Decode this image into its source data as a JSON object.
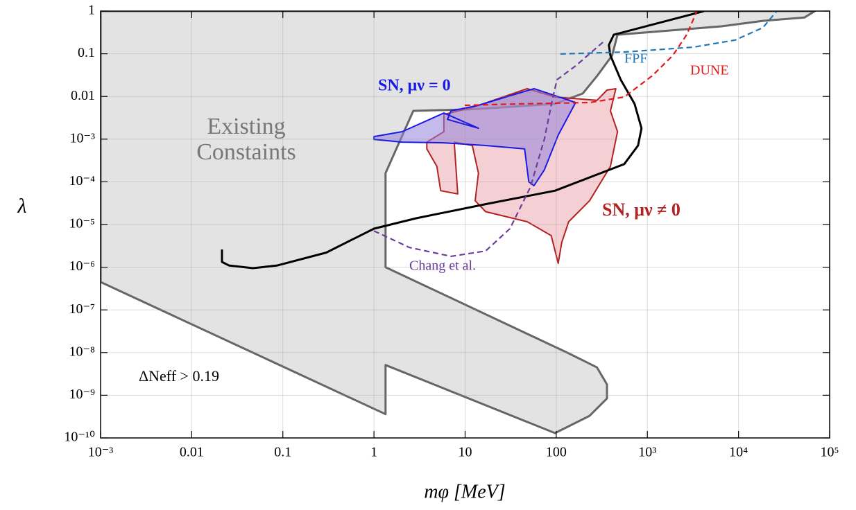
{
  "chart_data": {
    "type": "line",
    "log_x": true,
    "log_y": true,
    "grid": true,
    "xlabel": "mφ [MeV]",
    "ylabel": "λ",
    "xlim": [
      0.001,
      100000
    ],
    "xticks": [
      {
        "value": 0.001,
        "label": "10⁻³"
      },
      0.01,
      0.1,
      1,
      10,
      100,
      {
        "value": 1000,
        "label": "10³"
      },
      {
        "value": 10000,
        "label": "10⁴"
      },
      {
        "value": 100000,
        "label": "10⁵"
      }
    ],
    "ylim": [
      1e-10,
      1
    ],
    "yticks": [
      1,
      0.1,
      0.01,
      {
        "value": 0.001,
        "label": "10⁻³"
      },
      {
        "value": 0.0001,
        "label": "10⁻⁴"
      },
      {
        "value": 1e-05,
        "label": "10⁻⁵"
      },
      {
        "value": 1e-06,
        "label": "10⁻⁶"
      },
      {
        "value": 1e-07,
        "label": "10⁻⁷"
      },
      {
        "value": 1e-08,
        "label": "10⁻⁸"
      },
      {
        "value": 1e-09,
        "label": "10⁻⁹"
      },
      {
        "value": 1e-10,
        "label": "10⁻¹⁰"
      }
    ],
    "series": [
      {
        "color": "#666666",
        "fill": "#e3e3e3",
        "dash": false,
        "x": [
          0.001,
          69000,
          53000,
          18500,
          6500,
          470,
          410,
          280,
          195,
          97,
          12,
          2.7,
          1.34,
          1.34,
          137,
          280,
          360,
          360,
          232,
          97,
          1.34,
          1.34,
          0.001
        ],
        "y": [
          1,
          1,
          0.71,
          0.59,
          0.44,
          0.28,
          0.091,
          0.03,
          0.0117,
          0.0067,
          0.005,
          0.0046,
          0.00016,
          1e-06,
          9.6e-09,
          4.5e-09,
          1.8e-09,
          8.4e-10,
          3.3e-10,
          1.3e-10,
          5.1e-09,
          3.6e-10,
          4.5e-07
        ]
      },
      {
        "color": "#b22222",
        "fill": "rgba(230,150,160,0.45)",
        "dash": false,
        "x": [
          3.8,
          5.85,
          5.85,
          12,
          48,
          97,
          280,
          360,
          451,
          393,
          470,
          393,
          232,
          137,
          115,
          105,
          88,
          48,
          16.8,
          12.9,
          14,
          12,
          7.6,
          8.3,
          5.4,
          4.9,
          3.8
        ],
        "y": [
          0.00085,
          0.0015,
          0.0038,
          0.0055,
          0.0152,
          0.0097,
          0.0081,
          0.0141,
          0.0152,
          0.0046,
          0.0015,
          0.00023,
          3.6e-05,
          1.16e-05,
          3.8e-06,
          1.23e-06,
          5.5e-06,
          1.16e-05,
          2e-05,
          3.6e-05,
          0.00016,
          0.00071,
          0.00085,
          5.2e-05,
          6.2e-05,
          0.00023,
          0.00059
        ]
      },
      {
        "color": "#1a1ae6",
        "fill": "rgba(150,130,220,0.55)",
        "dash": false,
        "x": [
          1.0,
          2.04,
          5.85,
          14,
          6.4,
          7.0,
          14,
          28,
          57,
          97,
          163,
          105,
          74,
          57,
          50,
          45,
          16.8,
          5.85,
          2.04,
          1.0
        ],
        "y": [
          0.00115,
          0.0015,
          0.0041,
          0.0018,
          0.0029,
          0.0046,
          0.0062,
          0.0097,
          0.0152,
          0.0105,
          0.0072,
          0.00124,
          0.00019,
          8.1e-05,
          0.0001,
          0.00059,
          0.00071,
          0.00082,
          0.00085,
          0.00099
        ]
      },
      {
        "color": "#000000",
        "dash": false,
        "x": [
          0.0215,
          0.0215,
          0.0256,
          0.047,
          0.087,
          0.3,
          1.0,
          2.9,
          16.8,
          97,
          557,
          790,
          863,
          724,
          510,
          393,
          378,
          428,
          4180
        ],
        "y": [
          2.6e-06,
          1.33e-06,
          1.1e-06,
          9.5e-07,
          1.1e-06,
          2.2e-06,
          8e-06,
          1.4e-05,
          3e-05,
          6.2e-05,
          0.00026,
          0.00071,
          0.0018,
          0.0067,
          0.0247,
          0.091,
          0.16,
          0.28,
          1
        ]
      },
      {
        "color": "#6a3d9a",
        "dash": true,
        "x": [
          1.0,
          2.44,
          7.0,
          16.8,
          31,
          52,
          74,
          92,
          102,
          163,
          329
        ],
        "y": [
          7.1e-06,
          2.9e-06,
          1.8e-06,
          2.4e-06,
          8e-06,
          7.5e-05,
          0.001,
          0.0097,
          0.0247,
          0.052,
          0.19
        ]
      },
      {
        "color": "#e31a1c",
        "dash": true,
        "x": [
          9.9,
          40,
          232,
          557,
          1120,
          1900,
          2700,
          3500
        ],
        "y": [
          0.0062,
          0.0067,
          0.0072,
          0.0097,
          0.03,
          0.091,
          0.28,
          1
        ]
      },
      {
        "color": "#1f78b4",
        "dash": true,
        "x": [
          111,
          557,
          3210,
          9200,
          18500,
          26300
        ],
        "y": [
          0.099,
          0.11,
          0.143,
          0.21,
          0.41,
          1
        ]
      }
    ],
    "annotations": [
      {
        "text": "Existing",
        "color": "#777777"
      },
      {
        "text": "Constaints",
        "color": "#777777"
      },
      {
        "text": "SN, μν = 0",
        "color": "#1a1ae6"
      },
      {
        "text": "SN, μν ≠ 0",
        "color": "#b22222"
      },
      {
        "text": "Chang et al.",
        "color": "#6a3d9a"
      },
      {
        "text": "DUNE",
        "color": "#e31a1c"
      },
      {
        "text": "FPF",
        "color": "#1f78b4"
      },
      {
        "text": "ΔNeff > 0.19",
        "color": "#000000"
      }
    ]
  }
}
